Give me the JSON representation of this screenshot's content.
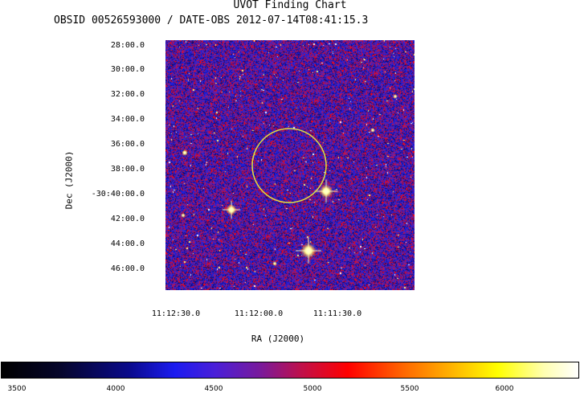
{
  "header": {
    "title": "UVOT Finding Chart",
    "subtitle": "OBSID 00526593000 / DATE-OBS 2012-07-14T08:41:15.3"
  },
  "axes": {
    "ylabel": "Dec (J2000)",
    "xlabel": "RA (J2000)",
    "yticks": [
      "28:00.0",
      "30:00.0",
      "32:00.0",
      "34:00.0",
      "36:00.0",
      "38:00.0",
      "-30:40:00.0",
      "42:00.0",
      "44:00.0",
      "46:00.0"
    ],
    "xticks": [
      "11:12:30.0",
      "11:12:00.0",
      "11:11:30.0"
    ]
  },
  "colorbar": {
    "ticks": [
      "3500",
      "4000",
      "4500",
      "5000",
      "5500",
      "6000"
    ],
    "colors": [
      "#000000",
      "#0a0a8a",
      "#1b1bf0",
      "#7a1a9a",
      "#ff0000",
      "#ffb300",
      "#ffff00",
      "#ffffff"
    ]
  },
  "marker": {
    "color": "#e0e040",
    "shape": "circle"
  }
}
